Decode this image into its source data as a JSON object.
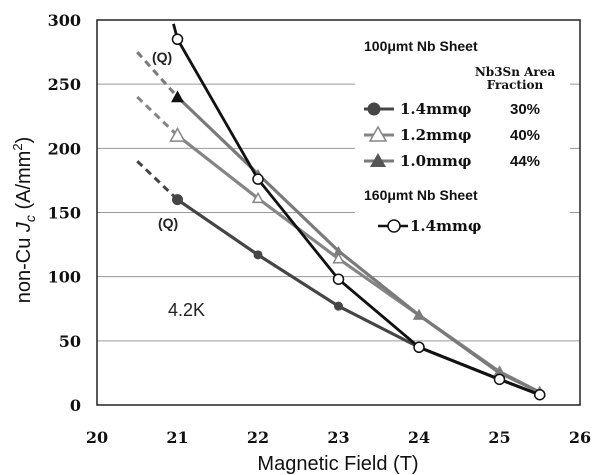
{
  "chart_data": {
    "type": "line",
    "xlabel": "Magnetic Field (T)",
    "ylabel_prefix": "non-Cu ",
    "ylabel_j": "J",
    "ylabel_sub": "c",
    "ylabel_unit": " (A/mm",
    "ylabel_sup": "2",
    "ylabel_close": ")",
    "xlim": [
      20,
      26
    ],
    "ylim": [
      0,
      300
    ],
    "xticks": [
      20,
      21,
      22,
      23,
      24,
      25,
      26
    ],
    "yticks": [
      0,
      50,
      100,
      150,
      200,
      250,
      300
    ],
    "grid": "horizontal",
    "temperature_label": "4.2K",
    "q_labels": [
      {
        "text": "(Q)",
        "x": 21,
        "y": 285
      },
      {
        "text": "(Q)",
        "x": 21,
        "y": 160
      }
    ],
    "legend": {
      "group1_title": "100μmt Nb Sheet",
      "fraction_header_line1": "Nb3Sn Area",
      "fraction_header_line2": "Fraction",
      "group2_title": "160μmt Nb Sheet"
    },
    "series": [
      {
        "name": "1.4mmφ",
        "group": 1,
        "fraction": "30%",
        "marker": "circle-filled",
        "color": "#454545",
        "x": [
          21,
          22,
          23,
          24,
          25,
          25.5
        ],
        "y": [
          160,
          117,
          77,
          45,
          20,
          8
        ],
        "dashed_x": [
          20.5,
          21
        ],
        "dashed_y": [
          190,
          160
        ]
      },
      {
        "name": "1.2mmφ",
        "group": 1,
        "fraction": "40%",
        "marker": "triangle-open",
        "color": "#858585",
        "x": [
          21,
          22,
          23,
          24,
          25,
          25.5
        ],
        "y": [
          210,
          161,
          114,
          70,
          26,
          10
        ],
        "dashed_x": [
          20.5,
          21
        ],
        "dashed_y": [
          240,
          210
        ]
      },
      {
        "name": "1.0mmφ",
        "group": 1,
        "fraction": "44%",
        "marker": "triangle-filled",
        "color": "#7a7a7a",
        "x": [
          21,
          22,
          23,
          24,
          25,
          25.5
        ],
        "y": [
          240,
          180,
          120,
          70,
          25,
          10
        ],
        "dashed_x": [
          20.5,
          21
        ],
        "dashed_y": [
          275,
          240
        ]
      },
      {
        "name": "1.4mmφ",
        "group": 2,
        "marker": "circle-open",
        "color": "#111111",
        "x": [
          21,
          22,
          23,
          24,
          25,
          25.5
        ],
        "y": [
          285,
          176,
          98,
          45,
          20,
          8
        ],
        "extend_x": [
          20.95,
          21
        ],
        "extend_y": [
          297,
          285
        ]
      }
    ]
  }
}
